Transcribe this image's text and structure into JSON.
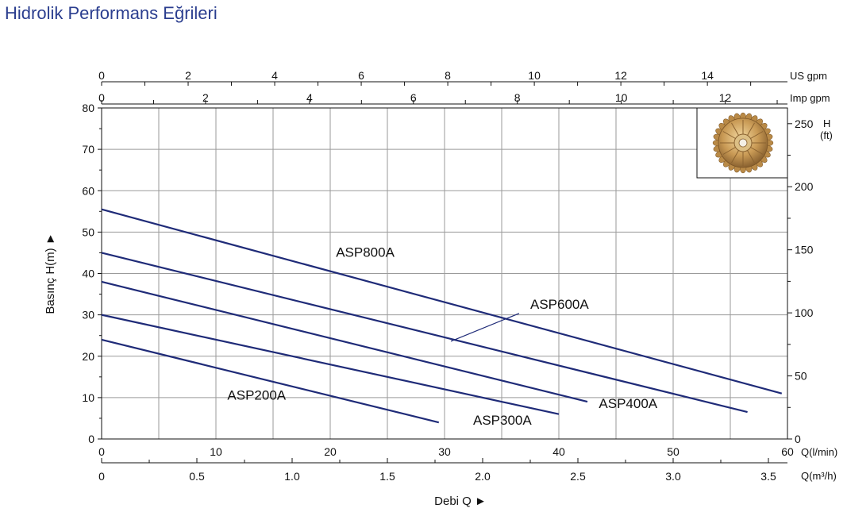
{
  "page": {
    "title": "Hidrolik Performans Eğrileri"
  },
  "colors": {
    "curve": "#1f2b78",
    "grid": "#9a9a9a",
    "axis": "#111111",
    "title": "#2b3e8f"
  },
  "icons": {
    "impeller": "impeller-photo"
  },
  "chart_data": {
    "type": "line",
    "xlim": [
      0,
      60
    ],
    "ylim": [
      0,
      80
    ],
    "grid": true,
    "xlabel": "Debi Q ►",
    "ylabel": "Basınç H(m) ►",
    "x_unit": "Q(l/min)",
    "x_ticks": [
      0,
      10,
      20,
      30,
      40,
      50,
      60
    ],
    "y_ticks": [
      0,
      10,
      20,
      30,
      40,
      50,
      60,
      70,
      80
    ],
    "secondary_axes": {
      "m3h": {
        "unit": "Q(m³/h)",
        "ticks": [
          "0",
          "0.5",
          "1.0",
          "1.5",
          "2.0",
          "2.5",
          "3.0",
          "3.5"
        ],
        "values": [
          0,
          0.5,
          1.0,
          1.5,
          2.0,
          2.5,
          3.0,
          3.5
        ],
        "minor_step": 0.25
      },
      "us_gpm": {
        "unit": "US gpm",
        "ticks": [
          "0",
          "2",
          "4",
          "6",
          "8",
          "10",
          "12",
          "14"
        ],
        "values": [
          0,
          2,
          4,
          6,
          8,
          10,
          12,
          14
        ],
        "minor_step": 1
      },
      "imp_gpm": {
        "unit": "Imp gpm",
        "ticks": [
          "0",
          "2",
          "4",
          "6",
          "8",
          "10",
          "12"
        ],
        "values": [
          0,
          2,
          4,
          6,
          8,
          10,
          12
        ],
        "minor_step": 1
      },
      "h_ft": {
        "unit_line1": "H",
        "unit_line2": "(ft)",
        "ticks": [
          "0",
          "50",
          "100",
          "150",
          "200",
          "250"
        ],
        "values": [
          0,
          50,
          100,
          150,
          200,
          250
        ],
        "minor_step": 25
      }
    },
    "series": [
      {
        "name": "ASP800A",
        "x": [
          0,
          59.5
        ],
        "y": [
          55.5,
          11
        ]
      },
      {
        "name": "ASP600A",
        "x": [
          0,
          56.5
        ],
        "y": [
          45,
          6.5
        ]
      },
      {
        "name": "ASP400A",
        "x": [
          0,
          42.5
        ],
        "y": [
          38,
          9
        ]
      },
      {
        "name": "ASP300A",
        "x": [
          0,
          40
        ],
        "y": [
          30,
          6
        ]
      },
      {
        "name": "ASP200A",
        "x": [
          0,
          29.5
        ],
        "y": [
          24,
          4
        ]
      }
    ],
    "labels": [
      {
        "text": "ASP800A",
        "x": 20.5,
        "y": 44
      },
      {
        "text": "ASP600A",
        "x": 37.5,
        "y": 31.5,
        "leader_to": [
          30,
          24
        ]
      },
      {
        "text": "ASP400A",
        "x": 43.5,
        "y": 7.5
      },
      {
        "text": "ASP300A",
        "x": 32.5,
        "y": 3.5
      },
      {
        "text": "ASP200A",
        "x": 11,
        "y": 9.5
      }
    ]
  }
}
